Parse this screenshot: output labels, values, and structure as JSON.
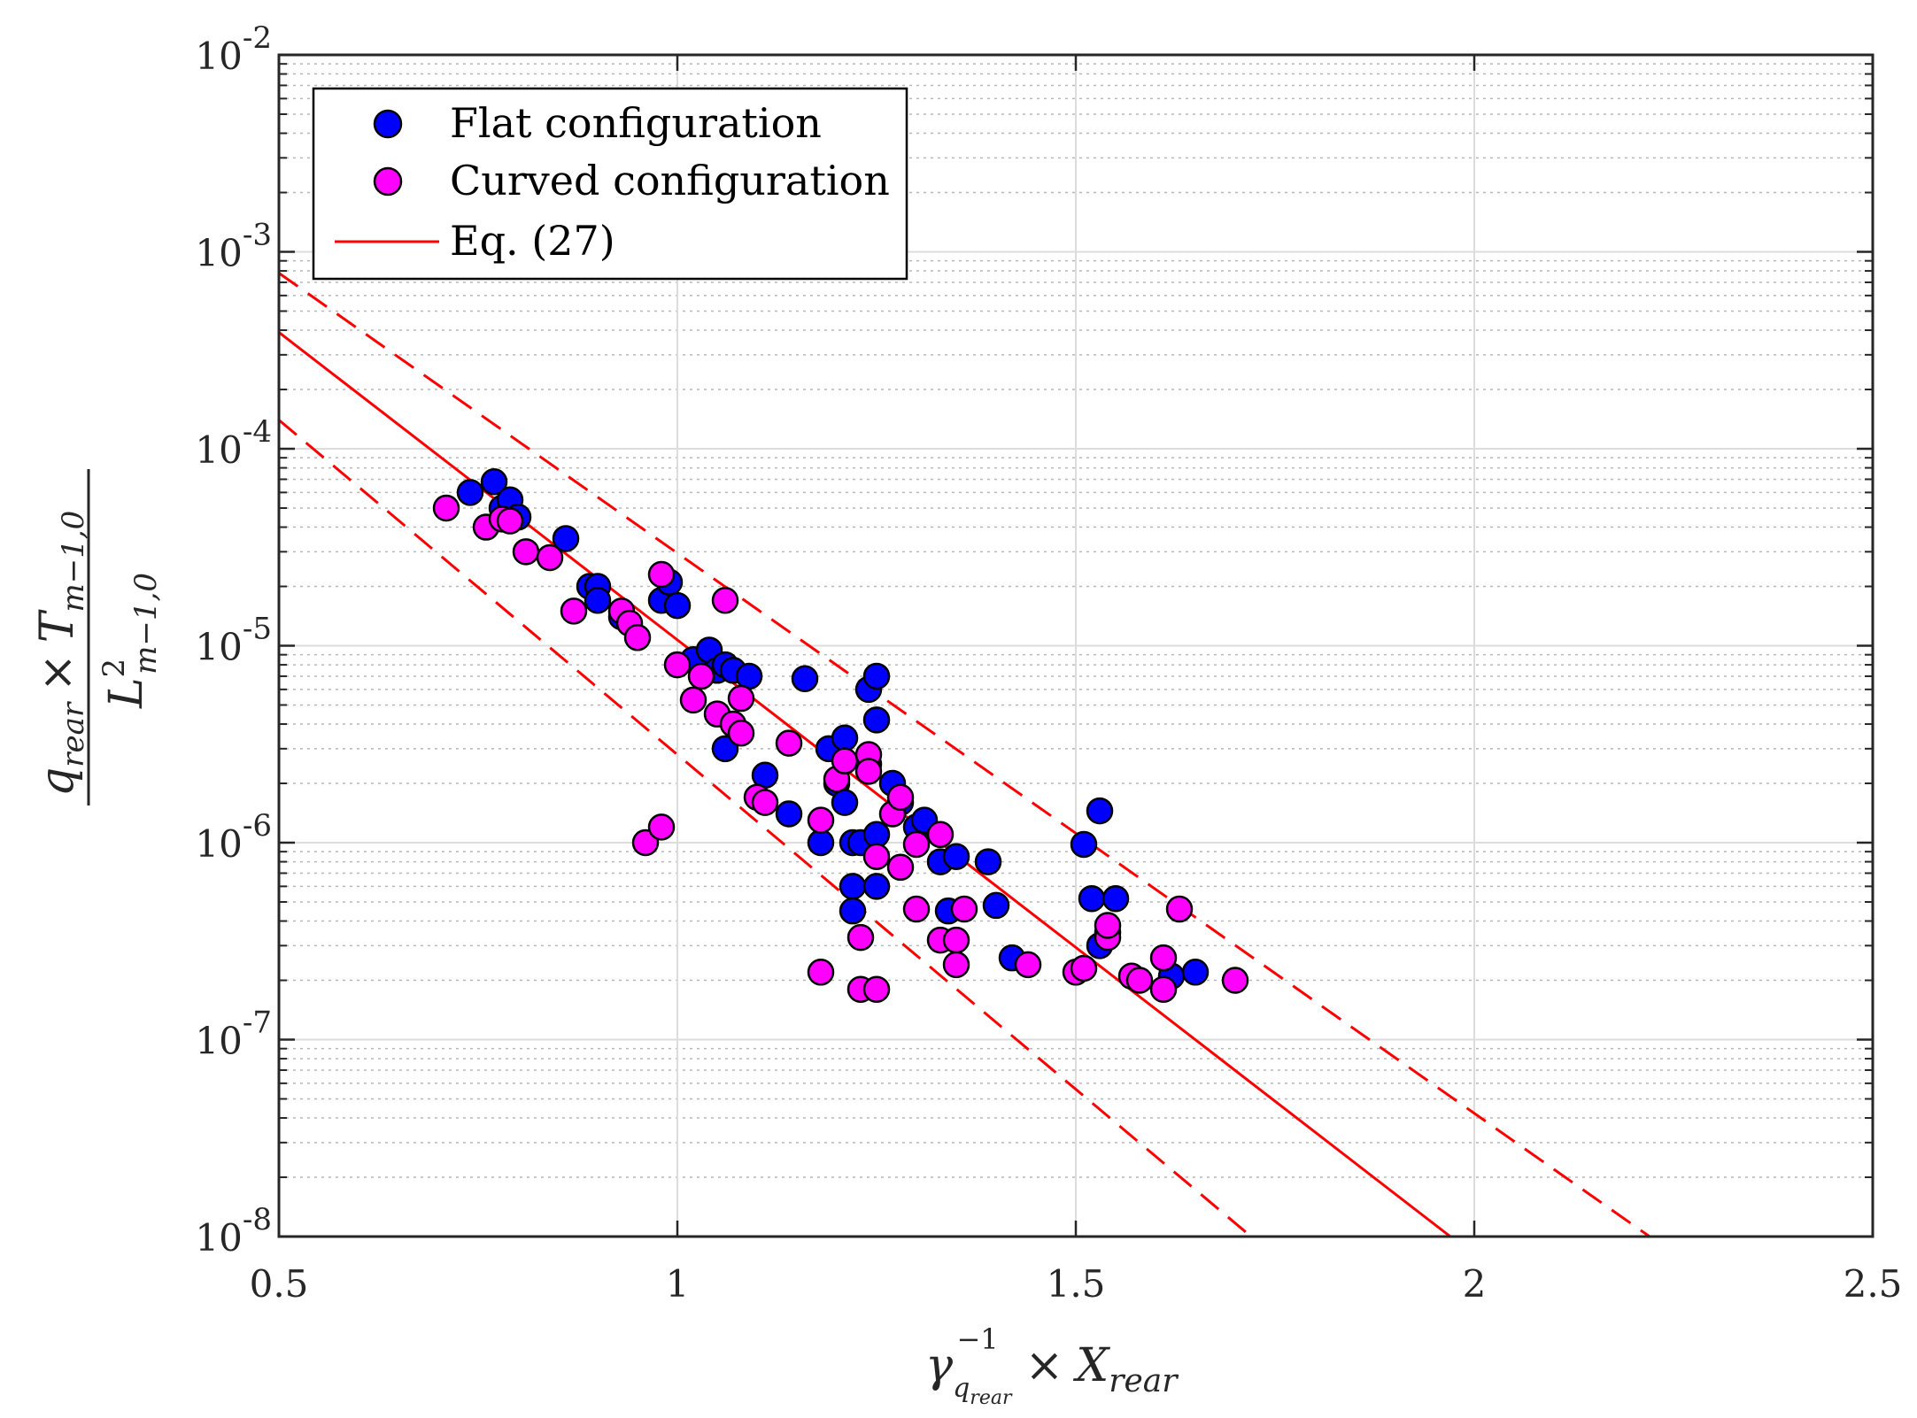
{
  "chart_data": {
    "type": "scatter",
    "xlabel": "γ_q_rear^-1 × X_rear",
    "ylabel": "q_rear × T_m-1,0 / L_m-1,0^2",
    "xlim": [
      0.5,
      2.5
    ],
    "ylim": [
      1e-08,
      0.01
    ],
    "yscale": "log",
    "xticks": [
      0.5,
      1,
      1.5,
      2,
      2.5
    ],
    "xtick_labels": [
      "0.5",
      "1",
      "1.5",
      "2",
      "2.5"
    ],
    "yticks": [
      1e-08,
      1e-07,
      1e-06,
      1e-05,
      0.0001,
      0.001,
      0.01
    ],
    "ytick_labels": [
      {
        "base": "10",
        "exp": "-8"
      },
      {
        "base": "10",
        "exp": "-7"
      },
      {
        "base": "10",
        "exp": "-6"
      },
      {
        "base": "10",
        "exp": "-5"
      },
      {
        "base": "10",
        "exp": "-4"
      },
      {
        "base": "10",
        "exp": "-3"
      },
      {
        "base": "10",
        "exp": "-2"
      }
    ],
    "grid": true,
    "legend_position": "top-left",
    "legend": [
      {
        "label": "Flat configuration",
        "marker": "circle",
        "color": "#0000ff"
      },
      {
        "label": "Curved configuration",
        "marker": "circle",
        "color": "#ff00ff"
      },
      {
        "label": "Eq. (27)",
        "marker": "line",
        "color": "#ff0000"
      }
    ],
    "series": [
      {
        "name": "Flat configuration",
        "color": "#0000ff",
        "points": [
          [
            0.74,
            6e-05
          ],
          [
            0.77,
            6.8e-05
          ],
          [
            0.78,
            5e-05
          ],
          [
            0.79,
            5.5e-05
          ],
          [
            0.8,
            4.5e-05
          ],
          [
            0.86,
            3.5e-05
          ],
          [
            0.89,
            2e-05
          ],
          [
            0.9,
            2e-05
          ],
          [
            0.9,
            1.7e-05
          ],
          [
            0.93,
            1.4e-05
          ],
          [
            0.98,
            1.7e-05
          ],
          [
            0.99,
            2.1e-05
          ],
          [
            1.0,
            1.6e-05
          ],
          [
            1.02,
            8.5e-06
          ],
          [
            1.04,
            9.5e-06
          ],
          [
            1.05,
            7.5e-06
          ],
          [
            1.06,
            8e-06
          ],
          [
            1.07,
            7.5e-06
          ],
          [
            1.09,
            7e-06
          ],
          [
            1.06,
            3e-06
          ],
          [
            1.11,
            2.2e-06
          ],
          [
            1.14,
            1.4e-06
          ],
          [
            1.16,
            6.8e-06
          ],
          [
            1.18,
            1e-06
          ],
          [
            1.19,
            3e-06
          ],
          [
            1.2,
            2e-06
          ],
          [
            1.21,
            3.4e-06
          ],
          [
            1.21,
            1.6e-06
          ],
          [
            1.22,
            1e-06
          ],
          [
            1.22,
            6e-07
          ],
          [
            1.22,
            4.5e-07
          ],
          [
            1.23,
            1e-06
          ],
          [
            1.24,
            2.5e-06
          ],
          [
            1.24,
            6e-06
          ],
          [
            1.25,
            7e-06
          ],
          [
            1.25,
            4.2e-06
          ],
          [
            1.25,
            1.1e-06
          ],
          [
            1.25,
            6e-07
          ],
          [
            1.27,
            2e-06
          ],
          [
            1.28,
            1.6e-06
          ],
          [
            1.3,
            1.2e-06
          ],
          [
            1.31,
            1.3e-06
          ],
          [
            1.33,
            8e-07
          ],
          [
            1.34,
            4.5e-07
          ],
          [
            1.35,
            8.5e-07
          ],
          [
            1.39,
            8e-07
          ],
          [
            1.4,
            4.8e-07
          ],
          [
            1.42,
            2.6e-07
          ],
          [
            1.51,
            9.8e-07
          ],
          [
            1.52,
            5.2e-07
          ],
          [
            1.53,
            1.45e-06
          ],
          [
            1.53,
            3e-07
          ],
          [
            1.54,
            3.5e-07
          ],
          [
            1.55,
            5.2e-07
          ],
          [
            1.62,
            2.1e-07
          ],
          [
            1.65,
            2.2e-07
          ]
        ]
      },
      {
        "name": "Curved configuration",
        "color": "#ff00ff",
        "points": [
          [
            0.71,
            5e-05
          ],
          [
            0.76,
            4e-05
          ],
          [
            0.78,
            4.4e-05
          ],
          [
            0.79,
            4.3e-05
          ],
          [
            0.81,
            3e-05
          ],
          [
            0.84,
            2.8e-05
          ],
          [
            0.87,
            1.5e-05
          ],
          [
            0.93,
            1.5e-05
          ],
          [
            0.94,
            1.3e-05
          ],
          [
            0.95,
            1.1e-05
          ],
          [
            0.96,
            1e-06
          ],
          [
            0.98,
            1.2e-06
          ],
          [
            0.98,
            2.3e-05
          ],
          [
            1.0,
            8e-06
          ],
          [
            1.02,
            5.3e-06
          ],
          [
            1.03,
            7e-06
          ],
          [
            1.05,
            4.5e-06
          ],
          [
            1.06,
            1.7e-05
          ],
          [
            1.07,
            4e-06
          ],
          [
            1.08,
            5.4e-06
          ],
          [
            1.08,
            3.6e-06
          ],
          [
            1.1,
            1.7e-06
          ],
          [
            1.11,
            1.6e-06
          ],
          [
            1.14,
            3.2e-06
          ],
          [
            1.18,
            1.3e-06
          ],
          [
            1.18,
            2.2e-07
          ],
          [
            1.2,
            2.1e-06
          ],
          [
            1.21,
            2.6e-06
          ],
          [
            1.23,
            3.3e-07
          ],
          [
            1.23,
            1.8e-07
          ],
          [
            1.24,
            2.8e-06
          ],
          [
            1.24,
            2.3e-06
          ],
          [
            1.25,
            8.5e-07
          ],
          [
            1.25,
            1.8e-07
          ],
          [
            1.27,
            1.4e-06
          ],
          [
            1.28,
            1.7e-06
          ],
          [
            1.28,
            7.5e-07
          ],
          [
            1.3,
            9.8e-07
          ],
          [
            1.3,
            4.6e-07
          ],
          [
            1.33,
            1.1e-06
          ],
          [
            1.33,
            3.2e-07
          ],
          [
            1.35,
            3.2e-07
          ],
          [
            1.35,
            2.4e-07
          ],
          [
            1.36,
            4.6e-07
          ],
          [
            1.44,
            2.4e-07
          ],
          [
            1.5,
            2.2e-07
          ],
          [
            1.51,
            2.3e-07
          ],
          [
            1.54,
            3.3e-07
          ],
          [
            1.54,
            3.8e-07
          ],
          [
            1.57,
            2.1e-07
          ],
          [
            1.58,
            2e-07
          ],
          [
            1.61,
            2.6e-07
          ],
          [
            1.61,
            1.8e-07
          ],
          [
            1.63,
            4.6e-07
          ],
          [
            1.7,
            2e-07
          ]
        ]
      }
    ],
    "lines": [
      {
        "name": "Eq. (27)",
        "color": "#ff0000",
        "style": "solid",
        "points": [
          [
            0.5,
            0.00039
          ],
          [
            1.97,
            1e-08
          ]
        ]
      },
      {
        "style": "dashed",
        "color": "#ff0000",
        "points": [
          [
            0.5,
            0.00078
          ],
          [
            2.22,
            1e-08
          ]
        ]
      },
      {
        "style": "dashed",
        "color": "#ff0000",
        "points": [
          [
            0.5,
            0.00014
          ],
          [
            1.72,
            1e-08
          ]
        ]
      }
    ]
  }
}
